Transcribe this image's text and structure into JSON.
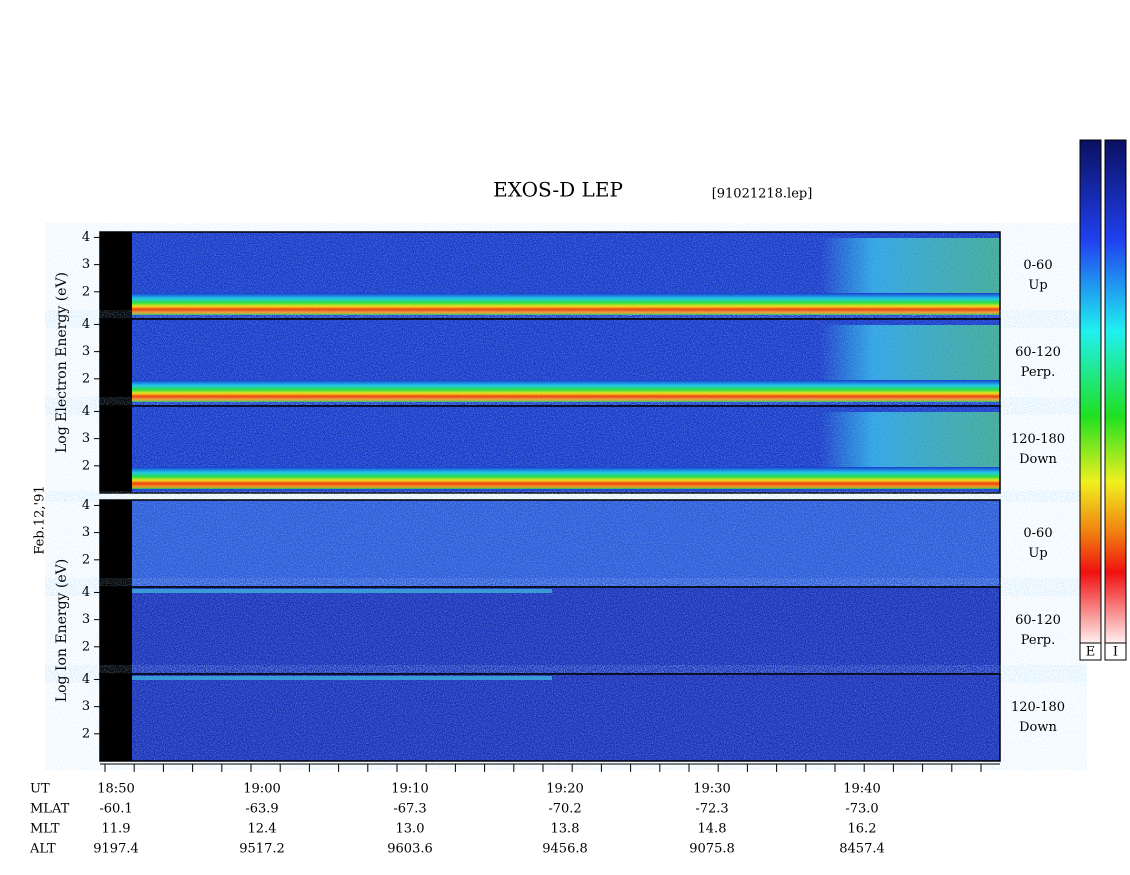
{
  "chart_data": {
    "type": "spectrogram",
    "title": "EXOS-D LEP",
    "file": "[91021218.lep]",
    "date": "Feb.12,'91",
    "yticks": [
      2,
      3,
      4
    ],
    "ylim": [
      1,
      4.2
    ],
    "groups": [
      {
        "ylabel": "Log Electron Energy (eV)",
        "kind": "electron",
        "panels": [
          {
            "angle": "0-60",
            "direction": "Up"
          },
          {
            "angle": "60-120",
            "direction": "Perp."
          },
          {
            "angle": "120-180",
            "direction": "Down"
          }
        ]
      },
      {
        "ylabel": "Log Ion Energy (eV)",
        "kind": "ion",
        "panels": [
          {
            "angle": "0-60",
            "direction": "Up"
          },
          {
            "angle": "60-120",
            "direction": "Perp."
          },
          {
            "angle": "120-180",
            "direction": "Down"
          }
        ]
      }
    ],
    "rows": [
      {
        "name": "UT",
        "values": [
          "18:50",
          "19:00",
          "19:10",
          "19:20",
          "19:30",
          "19:40"
        ]
      },
      {
        "name": "MLAT",
        "values": [
          "-60.1",
          "-63.9",
          "-67.3",
          "-70.2",
          "-72.3",
          "-73.0"
        ]
      },
      {
        "name": "MLT",
        "values": [
          "11.9",
          "12.4",
          "13.0",
          "13.8",
          "14.8",
          "16.2"
        ]
      },
      {
        "name": "ALT",
        "values": [
          "9197.4",
          "9517.2",
          "9603.6",
          "9456.8",
          "9075.8",
          "8457.4"
        ]
      }
    ],
    "colorbars": [
      "E",
      "I"
    ]
  }
}
